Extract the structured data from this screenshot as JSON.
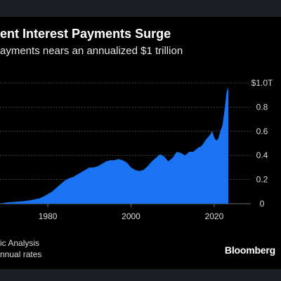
{
  "header": {
    "title": "ent Interest Payments Surge",
    "subtitle": "ayments nears an annualized $1 trillion"
  },
  "footer": {
    "source": "ic Analysis",
    "note": "nnual rates",
    "brand": "Bloomberg"
  },
  "colors": {
    "background": "#000000",
    "area_fill": "#1a73f0",
    "band": "#1b1f24",
    "grid": "#6b6b6b"
  },
  "chart_data": {
    "type": "area",
    "title": "",
    "xlabel": "",
    "ylabel": "",
    "xlim": [
      1968.5,
      2028.8
    ],
    "ylim": [
      0,
      1.0
    ],
    "grid": "horizontal dotted",
    "y_ticks": [
      {
        "value": 0,
        "label": "0"
      },
      {
        "value": 0.2,
        "label": "0.2"
      },
      {
        "value": 0.4,
        "label": "0.4"
      },
      {
        "value": 0.6,
        "label": "0.6"
      },
      {
        "value": 0.8,
        "label": "0.8"
      },
      {
        "value": 1.0,
        "label": "$1.0T"
      }
    ],
    "x_ticks": [
      {
        "value": 1980,
        "label": "1980"
      },
      {
        "value": 2000,
        "label": "2000"
      },
      {
        "value": 2020,
        "label": "2020"
      }
    ],
    "series": [
      {
        "x": [
          1968.5,
          1970,
          1972,
          1974,
          1976,
          1978,
          1979,
          1980,
          1981,
          1982,
          1983,
          1984,
          1985,
          1986,
          1987,
          1988,
          1989,
          1990,
          1991,
          1992,
          1993,
          1994,
          1995,
          1996,
          1997,
          1998,
          1999,
          2000,
          2001,
          2002,
          2003,
          2004,
          2005,
          2006,
          2007,
          2008,
          2009,
          2010,
          2011,
          2012,
          2013,
          2014,
          2015,
          2016,
          2017,
          2018,
          2019,
          2019.5,
          2020,
          2020.5,
          2021,
          2021.5,
          2022,
          2022.5,
          2023,
          2023.4
        ],
        "values": [
          0.0,
          0.01,
          0.015,
          0.02,
          0.03,
          0.045,
          0.06,
          0.08,
          0.1,
          0.13,
          0.16,
          0.19,
          0.21,
          0.22,
          0.24,
          0.26,
          0.28,
          0.3,
          0.3,
          0.31,
          0.33,
          0.35,
          0.36,
          0.36,
          0.37,
          0.36,
          0.34,
          0.3,
          0.28,
          0.27,
          0.28,
          0.31,
          0.35,
          0.38,
          0.41,
          0.39,
          0.35,
          0.38,
          0.43,
          0.42,
          0.4,
          0.43,
          0.43,
          0.46,
          0.48,
          0.53,
          0.57,
          0.6,
          0.55,
          0.52,
          0.54,
          0.6,
          0.65,
          0.78,
          0.93,
          0.96
        ]
      }
    ]
  }
}
